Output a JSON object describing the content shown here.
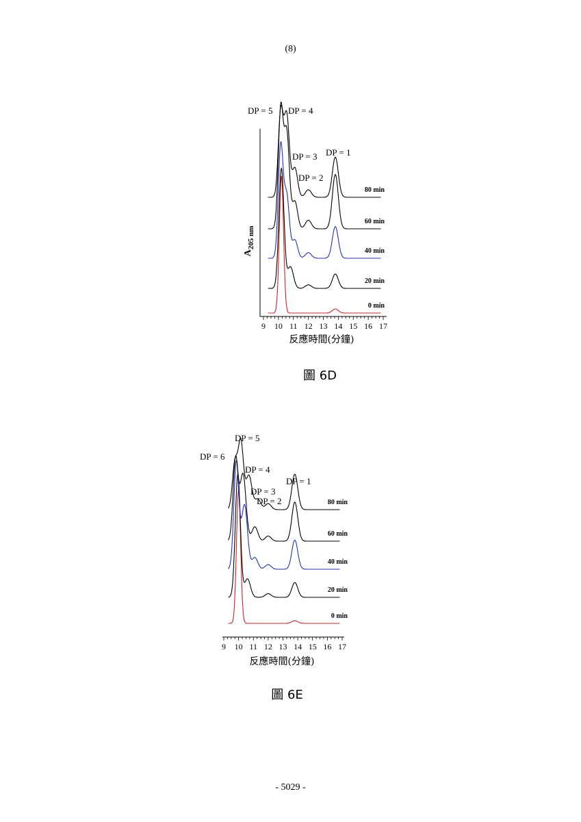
{
  "page": {
    "header": "(8)",
    "footer": "- 5029 -"
  },
  "chart_data": [
    {
      "id": "6D",
      "type": "line",
      "caption": "圖 6D",
      "xlabel": "反應時間(分鐘)",
      "ylabel_main": "A",
      "ylabel_sub": "205 nm",
      "xlim": [
        9,
        17
      ],
      "xticks": [
        9,
        10,
        11,
        12,
        13,
        14,
        15,
        16,
        17
      ],
      "series": [
        {
          "name": "0 min",
          "color": "#d62020",
          "peaks": [
            {
              "x": 10.2,
              "h": 1.0,
              "s": 0.14
            },
            {
              "x": 13.8,
              "h": 0.03,
              "s": 0.2
            }
          ]
        },
        {
          "name": "20 min",
          "color": "#000000",
          "peaks": [
            {
              "x": 10.2,
              "h": 1.0,
              "s": 0.17
            },
            {
              "x": 10.8,
              "h": 0.18,
              "s": 0.2
            },
            {
              "x": 12.0,
              "h": 0.03,
              "s": 0.2
            },
            {
              "x": 13.8,
              "h": 0.12,
              "s": 0.2
            }
          ]
        },
        {
          "name": "40 min",
          "color": "#2030c0",
          "peaks": [
            {
              "x": 10.15,
              "h": 0.98,
              "s": 0.16
            },
            {
              "x": 10.55,
              "h": 0.55,
              "s": 0.18
            },
            {
              "x": 11.1,
              "h": 0.16,
              "s": 0.18
            },
            {
              "x": 12.0,
              "h": 0.05,
              "s": 0.2
            },
            {
              "x": 13.8,
              "h": 0.28,
              "s": 0.2
            }
          ]
        },
        {
          "name": "60 min",
          "color": "#000000",
          "peaks": [
            {
              "x": 10.15,
              "h": 0.95,
              "s": 0.16
            },
            {
              "x": 10.55,
              "h": 0.78,
              "s": 0.18
            },
            {
              "x": 11.1,
              "h": 0.22,
              "s": 0.18
            },
            {
              "x": 12.0,
              "h": 0.07,
              "s": 0.2
            },
            {
              "x": 13.8,
              "h": 0.44,
              "s": 0.2
            }
          ]
        },
        {
          "name": "80 min",
          "color": "#000000",
          "peaks": [
            {
              "x": 10.15,
              "h": 1.0,
              "s": 0.16
            },
            {
              "x": 10.55,
              "h": 0.98,
              "s": 0.18
            },
            {
              "x": 11.1,
              "h": 0.35,
              "s": 0.18
            },
            {
              "x": 12.0,
              "h": 0.09,
              "s": 0.2
            },
            {
              "x": 13.8,
              "h": 0.48,
              "s": 0.2
            }
          ]
        }
      ],
      "annotations": [
        "DP = 5",
        "DP = 4",
        "DP = 3",
        "DP = 2",
        "DP = 1"
      ]
    },
    {
      "id": "6E",
      "type": "line",
      "caption": "圖 6E",
      "xlabel": "反應時間(分鐘)",
      "xlim": [
        9,
        17
      ],
      "xticks": [
        9,
        10,
        11,
        12,
        13,
        14,
        15,
        16,
        17
      ],
      "series": [
        {
          "name": "0 min",
          "color": "#d62020",
          "peaks": [
            {
              "x": 10.0,
              "h": 1.0,
              "s": 0.14
            },
            {
              "x": 13.8,
              "h": 0.02,
              "s": 0.2
            }
          ]
        },
        {
          "name": "20 min",
          "color": "#000000",
          "peaks": [
            {
              "x": 9.95,
              "h": 1.0,
              "s": 0.17
            },
            {
              "x": 10.6,
              "h": 0.15,
              "s": 0.2
            },
            {
              "x": 12.0,
              "h": 0.03,
              "s": 0.2
            },
            {
              "x": 13.8,
              "h": 0.12,
              "s": 0.2
            }
          ]
        },
        {
          "name": "40 min",
          "color": "#2030c0",
          "peaks": [
            {
              "x": 9.85,
              "h": 0.92,
              "s": 0.17
            },
            {
              "x": 10.4,
              "h": 0.55,
              "s": 0.2
            },
            {
              "x": 11.1,
              "h": 0.1,
              "s": 0.2
            },
            {
              "x": 12.0,
              "h": 0.04,
              "s": 0.2
            },
            {
              "x": 13.8,
              "h": 0.25,
              "s": 0.2
            }
          ]
        },
        {
          "name": "60 min",
          "color": "#000000",
          "peaks": [
            {
              "x": 9.8,
              "h": 0.8,
              "s": 0.17
            },
            {
              "x": 10.3,
              "h": 0.65,
              "s": 0.2
            },
            {
              "x": 11.1,
              "h": 0.14,
              "s": 0.2
            },
            {
              "x": 12.0,
              "h": 0.05,
              "s": 0.2
            },
            {
              "x": 13.8,
              "h": 0.38,
              "s": 0.2
            }
          ]
        },
        {
          "name": "80 min",
          "color": "#000000",
          "peaks": [
            {
              "x": 9.75,
              "h": 0.6,
              "s": 0.17
            },
            {
              "x": 10.15,
              "h": 0.9,
              "s": 0.18
            },
            {
              "x": 10.7,
              "h": 0.45,
              "s": 0.2
            },
            {
              "x": 11.3,
              "h": 0.14,
              "s": 0.2
            },
            {
              "x": 12.0,
              "h": 0.08,
              "s": 0.2
            },
            {
              "x": 13.8,
              "h": 0.47,
              "s": 0.2
            }
          ]
        }
      ],
      "annotations": [
        "DP = 6",
        "DP = 5",
        "DP = 4",
        "DP = 3",
        "DP = 2",
        "DP = 1"
      ]
    }
  ]
}
